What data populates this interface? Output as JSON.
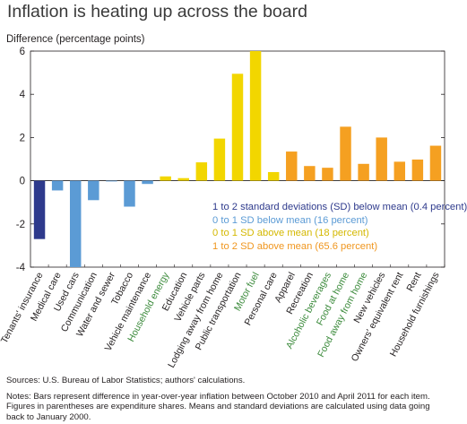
{
  "title": "Inflation is heating up across the board",
  "chart_data": {
    "type": "bar",
    "title": "Inflation is heating up across the board",
    "ylabel": "Difference (percentage points)",
    "xlabel": "",
    "ylim": [
      -4,
      6
    ],
    "yticks": [
      "6",
      "4",
      "2",
      "0",
      "-2",
      "-4"
    ],
    "grid": false,
    "legend_position": "center-right",
    "categories": [
      "Tenants' insurance",
      "Medical care",
      "Used cars",
      "Communication",
      "Water and sewer",
      "Tobacco",
      "Vehicle maintenance",
      "Household energy",
      "Education",
      "Vehicle parts",
      "Lodging away from home",
      "Public transportation",
      "Motor fuel",
      "Personal care",
      "Apparel",
      "Recreation",
      "Alcoholic beverages",
      "Food at home",
      "Food away from home",
      "New vehicles",
      "Owners' equivalent rent",
      "Rent",
      "Household furnishings"
    ],
    "values": [
      -2.7,
      -0.45,
      -4.0,
      -0.9,
      -0.02,
      -1.2,
      -0.15,
      0.2,
      0.12,
      0.85,
      1.95,
      4.95,
      6.0,
      0.4,
      1.35,
      0.68,
      0.6,
      2.5,
      0.78,
      2.0,
      0.88,
      0.98,
      1.62
    ],
    "groups": [
      0,
      1,
      1,
      1,
      1,
      1,
      1,
      2,
      2,
      2,
      2,
      2,
      2,
      2,
      3,
      3,
      3,
      3,
      3,
      3,
      3,
      3,
      3
    ],
    "green_labels": [
      "Household energy",
      "Motor fuel",
      "Alcoholic beverages",
      "Food at home",
      "Food away from home"
    ],
    "group_colors": [
      "#2e3a8c",
      "#5b9bd5",
      "#f2d600",
      "#f5a021"
    ],
    "label_color_default": "#231f20",
    "label_color_highlight": "#3b8a3b",
    "legend": [
      {
        "label": "1 to 2 standard deviations (SD) below mean (0.4 percent)",
        "color": "#2e3a8c"
      },
      {
        "label": "0 to 1 SD below mean (16 percent)",
        "color": "#5b9bd5"
      },
      {
        "label": "0 to 1 SD above mean (18 percent)",
        "color": "#d4b800"
      },
      {
        "label": "1 to 2 SD above mean (65.6 percent)",
        "color": "#f0961e"
      }
    ]
  },
  "sources": "Sources: U.S. Bureau of Labor Statistics; authors' calculations.",
  "notes": "Notes: Bars represent difference in year-over-year inflation between October 2010 and April 2011 for each item. Figures in parentheses are expenditure shares. Means and standard deviations are calculated using data going back to January 2000."
}
